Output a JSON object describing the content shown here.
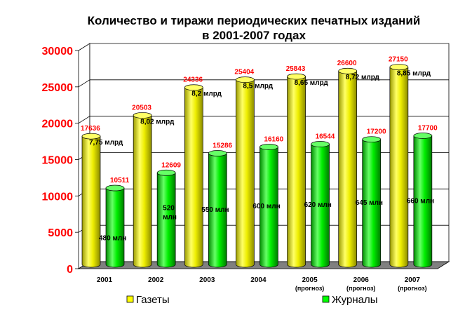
{
  "chart_data": {
    "type": "bar",
    "title": "Количество и тиражи периодических печатных изданий",
    "subtitle": "в 2001-2007 годах",
    "categories": [
      "2001",
      "2002",
      "2003",
      "2004",
      "2005",
      "2006",
      "2007"
    ],
    "category_notes": [
      "",
      "",
      "",
      "",
      "(прогноз)",
      "(прогноз)",
      "(прогноз)"
    ],
    "ylim": [
      0,
      30000
    ],
    "yticks": [
      0,
      5000,
      10000,
      15000,
      20000,
      25000,
      30000
    ],
    "grid": true,
    "legend_position": "bottom",
    "series": [
      {
        "name": "Газеты",
        "color": "#ffff00",
        "values": [
          17636,
          20503,
          24336,
          25404,
          25843,
          26600,
          27150
        ],
        "annotations": [
          "7,75 млрд",
          "8,02 млрд",
          "8,2 млрд",
          "8,5 млрд",
          "8,65 млрд",
          "8,72 млрд",
          "8,85 млрд"
        ]
      },
      {
        "name": "Журналы",
        "color": "#00ff00",
        "values": [
          10511,
          12609,
          15286,
          16160,
          16544,
          17200,
          17700
        ],
        "annotations": [
          "480 млн",
          "520 млн",
          "550 млн",
          "600 млн",
          "620 млн",
          "645 млн",
          "660 млн"
        ]
      }
    ]
  }
}
